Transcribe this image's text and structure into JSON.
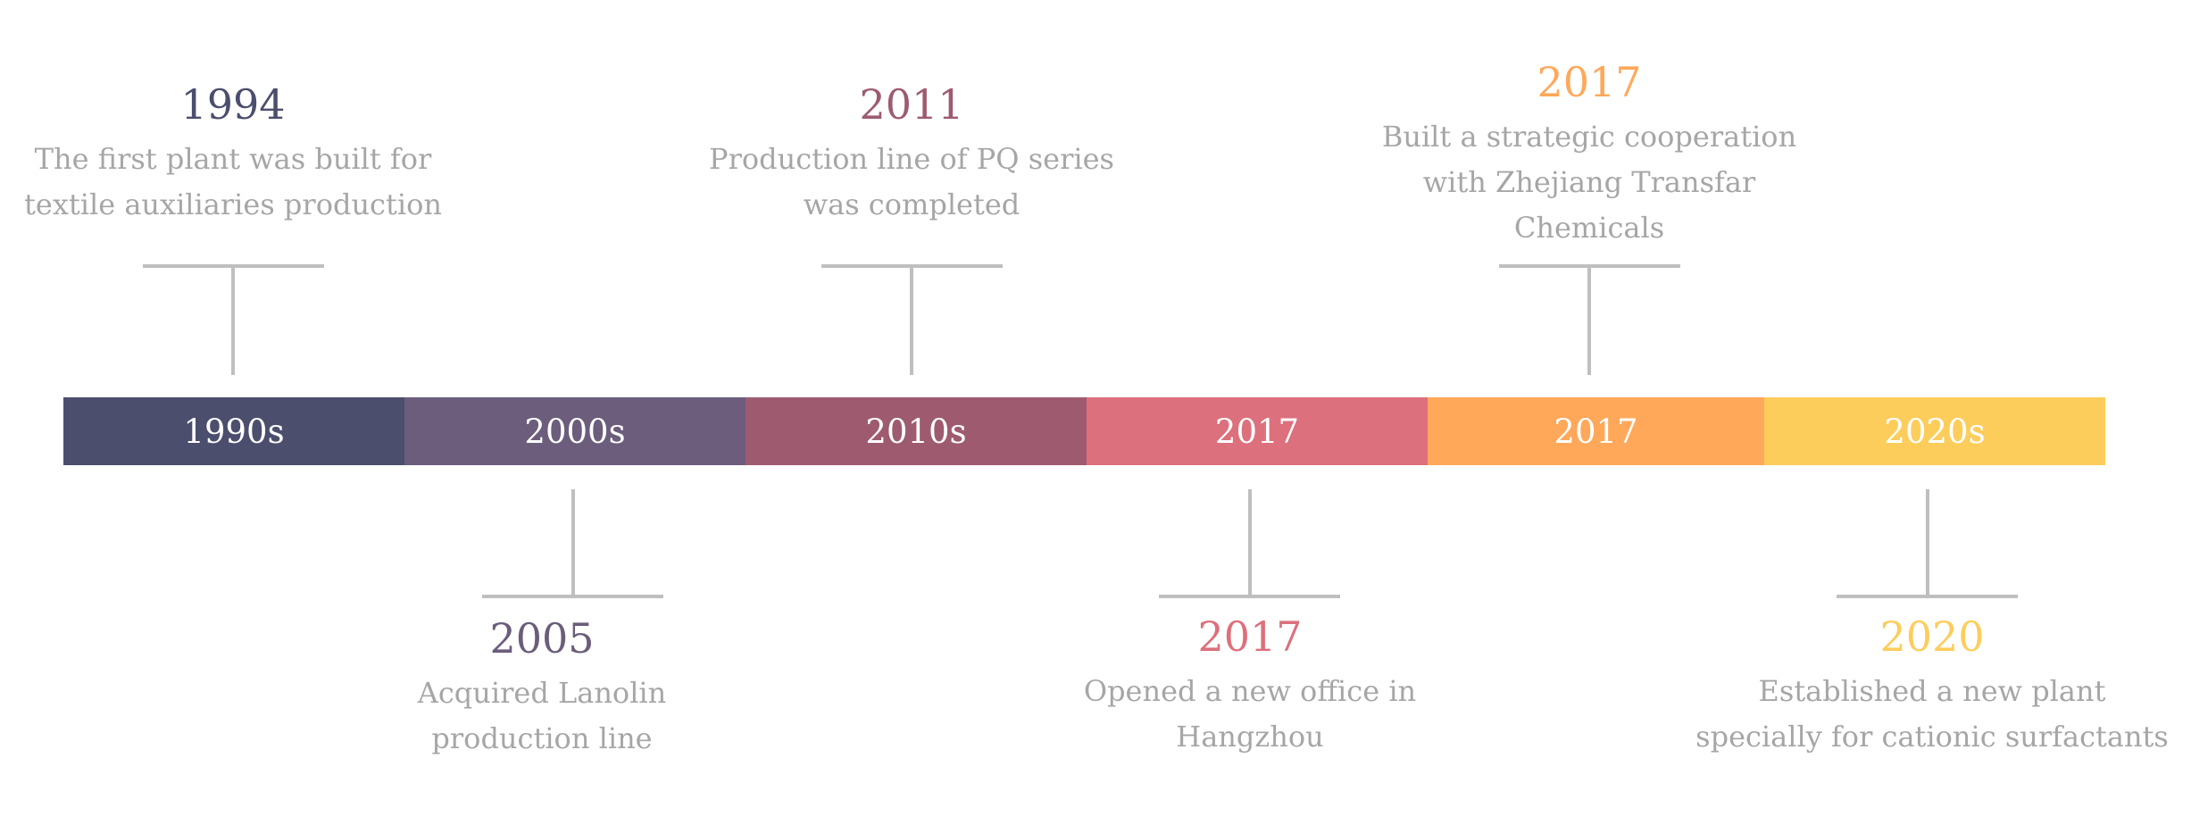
{
  "segments": [
    {
      "label": "1990s",
      "color": "#4b4e6d"
    },
    {
      "label": "2000s",
      "color": "#6b5d7b"
    },
    {
      "label": "2010s",
      "color": "#9e5b70"
    },
    {
      "label": "2017",
      "color": "#dc707c"
    },
    {
      "label": "2017",
      "color": "#ffa85a"
    },
    {
      "label": "2020s",
      "color": "#fdcd5c"
    }
  ],
  "events": [
    {
      "year": "1994",
      "year_color": "#4b4e6d",
      "lines": [
        "The first plant was built for",
        "textile auxiliaries production"
      ]
    },
    {
      "year": "2005",
      "year_color": "#6b5d7b",
      "lines": [
        "Acquired Lanolin",
        "production line"
      ]
    },
    {
      "year": "2011",
      "year_color": "#9e5b70",
      "lines": [
        "Production line of PQ series",
        "was completed"
      ]
    },
    {
      "year": "2017",
      "year_color": "#dc707c",
      "lines": [
        "Opened a new office in",
        "Hangzhou"
      ]
    },
    {
      "year": "2017",
      "year_color": "#ffa85a",
      "lines": [
        "Built a strategic cooperation",
        "with Zhejiang Transfar",
        "Chemicals"
      ]
    },
    {
      "year": "2020",
      "year_color": "#fdcd5c",
      "lines": [
        "Established a new plant",
        "specially for cationic surfactants"
      ]
    }
  ]
}
